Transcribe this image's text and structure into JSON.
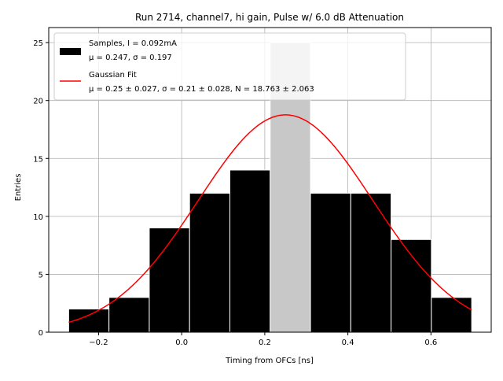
{
  "chart_data": {
    "type": "bar",
    "title": "Run 2714, channel7, hi gain, Pulse w/ 6.0 dB Attenuation",
    "xlabel": "Timing from OFCs [ns]",
    "ylabel": "Entries",
    "xlim": [
      -0.32,
      0.745
    ],
    "ylim": [
      0,
      26.3
    ],
    "xticks": [
      -0.2,
      0.0,
      0.2,
      0.4,
      0.6
    ],
    "xtick_labels": [
      "−0.2",
      "0.0",
      "0.2",
      "0.4",
      "0.6"
    ],
    "yticks": [
      0,
      5,
      10,
      15,
      20,
      25
    ],
    "ytick_labels": [
      "0",
      "5",
      "10",
      "15",
      "20",
      "25"
    ],
    "grid": true,
    "legend_position": "top-left",
    "histogram": {
      "bin_edges": [
        -0.272,
        -0.175,
        -0.078,
        0.019,
        0.116,
        0.213,
        0.31,
        0.407,
        0.504,
        0.601,
        0.698
      ],
      "counts": [
        2,
        3,
        9,
        12,
        14,
        25,
        12,
        12,
        8,
        3
      ],
      "highlight_bin": 5,
      "color": "#000000",
      "highlight_color": "#c8c8c8",
      "edge_color": "#ffffff"
    },
    "fit": {
      "mu": 0.25,
      "sigma": 0.21,
      "amplitude": 18.763,
      "color": "#ff0000"
    },
    "legend": [
      {
        "marker": "patch",
        "color": "#000000",
        "line1": "Samples, I = 0.092mA",
        "line2": "μ = 0.247, σ = 0.197"
      },
      {
        "marker": "line",
        "color": "#ff0000",
        "line1": "Gaussian Fit",
        "line2": "μ = 0.25 ± 0.027, σ = 0.21 ± 0.028, N = 18.763 ± 2.063"
      }
    ]
  }
}
